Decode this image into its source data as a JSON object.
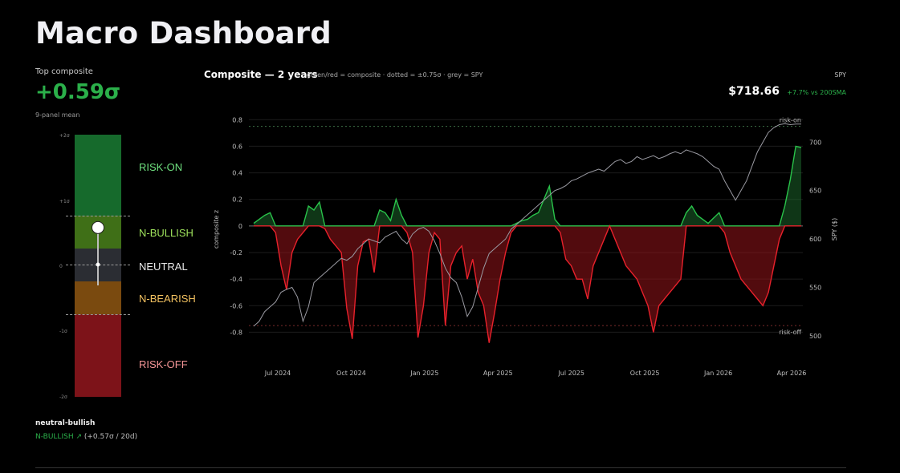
{
  "page": {
    "title": "Macro Dashboard"
  },
  "top": {
    "label": "Top composite",
    "value": "+0.59σ",
    "sub": "9-panel mean"
  },
  "gauge": {
    "ticks": [
      "+2σ",
      "+1σ",
      "0",
      "-1σ",
      "-2σ"
    ],
    "bands": [
      {
        "label": "RISK-ON",
        "color": "#166a2c",
        "label_color": "#6fe07f"
      },
      {
        "label": "N-BULLISH",
        "color": "#3f6f17",
        "label_color": "#9fe35c"
      },
      {
        "label": "NEUTRAL",
        "color": "#2b2d33",
        "label_color": "#e8e8e8"
      },
      {
        "label": "N-BEARISH",
        "color": "#7a4a0f",
        "label_color": "#f2c160"
      },
      {
        "label": "RISK-OFF",
        "color": "#7d1319",
        "label_color": "#f49596"
      }
    ],
    "current_sigma": 0.57,
    "median_sigma": 0.0
  },
  "regime": {
    "title": "neutral-bullish",
    "tag": "N-BULLISH ↗",
    "detail": "(+0.57σ / 20d)"
  },
  "chart_header": {
    "title": "Composite — 2 years",
    "legend": "green/red = composite · dotted = ±0.75σ · grey = SPY",
    "spy_label": "SPY",
    "spy_price": "$718.66",
    "spy_change": "+7.7% vs 200SMA"
  },
  "chart_data": {
    "type": "area",
    "x_ticks": [
      "Jul 2024",
      "Oct 2024",
      "Jan 2025",
      "Apr 2025",
      "Jul 2025",
      "Oct 2025",
      "Jan 2026",
      "Apr 2026"
    ],
    "y_left": {
      "label": "composite z",
      "ticks": [
        0.8,
        0.6,
        0.4,
        0.2,
        0,
        -0.2,
        -0.4,
        -0.6,
        -0.8
      ],
      "range": [
        -0.9,
        0.85
      ]
    },
    "y_right": {
      "label": "SPY ($)",
      "ticks": [
        700,
        650,
        600,
        550,
        500
      ],
      "range": [
        490,
        730
      ]
    },
    "thresholds": {
      "upper": 0.75,
      "lower": -0.75,
      "upper_label": "risk-on",
      "lower_label": "risk-off"
    },
    "series": [
      {
        "name": "composite",
        "x_index_range": [
          0,
          100
        ],
        "values": [
          0.02,
          0.05,
          0.08,
          0.1,
          -0.05,
          -0.3,
          -0.48,
          -0.2,
          -0.1,
          -0.05,
          0.15,
          0.12,
          0.18,
          -0.02,
          -0.1,
          -0.15,
          -0.2,
          -0.62,
          -0.85,
          -0.3,
          -0.12,
          -0.1,
          -0.35,
          0.12,
          0.1,
          0.04,
          0.2,
          0.08,
          -0.05,
          -0.2,
          -0.84,
          -0.6,
          -0.2,
          -0.05,
          -0.1,
          -0.75,
          -0.3,
          -0.2,
          -0.15,
          -0.4,
          -0.25,
          -0.5,
          -0.6,
          -0.88,
          -0.65,
          -0.4,
          -0.2,
          -0.05,
          0.02,
          0.04,
          0.05,
          0.08,
          0.1,
          0.2,
          0.3,
          0.05,
          -0.05,
          -0.25,
          -0.3,
          -0.4,
          -0.4,
          -0.55,
          -0.3,
          -0.2,
          -0.1,
          0.0,
          -0.1,
          -0.2,
          -0.3,
          -0.35,
          -0.4,
          -0.5,
          -0.6,
          -0.8,
          -0.6,
          -0.55,
          -0.5,
          -0.45,
          -0.4,
          0.1,
          0.15,
          0.08,
          0.05,
          0.02,
          0.06,
          0.1,
          -0.05,
          -0.2,
          -0.3,
          -0.4,
          -0.45,
          -0.5,
          -0.55,
          -0.6,
          -0.5,
          -0.3,
          -0.1,
          0.15,
          0.35,
          0.6,
          0.59
        ]
      },
      {
        "name": "SPY",
        "x_index_range": [
          0,
          100
        ],
        "values": [
          510,
          515,
          525,
          530,
          535,
          545,
          548,
          550,
          540,
          515,
          530,
          555,
          560,
          565,
          570,
          575,
          580,
          578,
          582,
          590,
          595,
          600,
          598,
          596,
          602,
          605,
          608,
          600,
          595,
          605,
          610,
          612,
          608,
          598,
          585,
          570,
          560,
          555,
          540,
          520,
          530,
          550,
          570,
          585,
          590,
          595,
          600,
          610,
          615,
          620,
          625,
          630,
          635,
          640,
          645,
          650,
          652,
          655,
          660,
          662,
          665,
          668,
          670,
          672,
          670,
          675,
          680,
          682,
          678,
          680,
          685,
          682,
          684,
          686,
          683,
          685,
          688,
          690,
          688,
          692,
          690,
          688,
          685,
          680,
          675,
          672,
          660,
          650,
          640,
          650,
          660,
          675,
          690,
          700,
          710,
          715,
          718,
          719,
          718,
          718.66,
          718.66
        ]
      }
    ]
  }
}
